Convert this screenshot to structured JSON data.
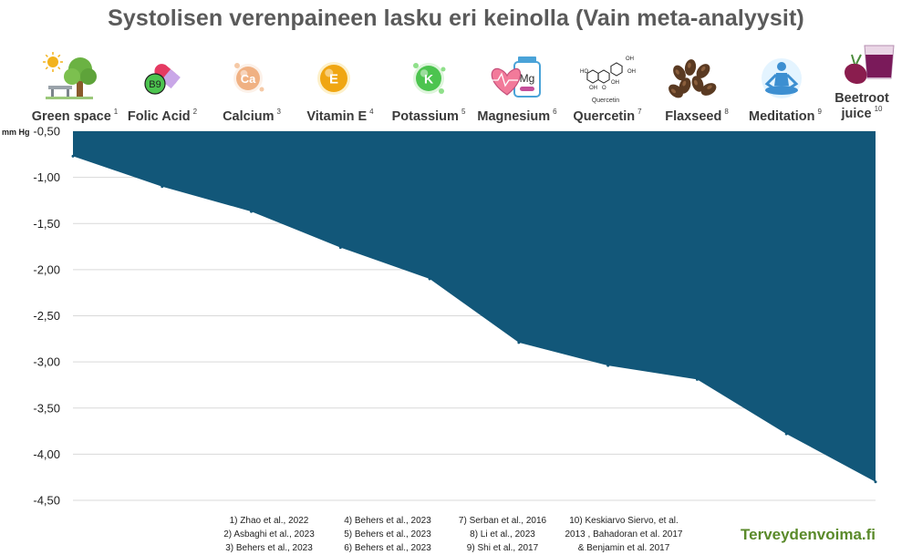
{
  "page": {
    "title": "Systolisen verenpaineen lasku eri keinolla (Vain meta-analyysit)",
    "brand": "Terveydenvoima.fi",
    "colors": {
      "area_fill": "#125779",
      "gridline": "#d9d9d9",
      "title": "#5a5a5a",
      "brand": "#5a8a2a"
    }
  },
  "chart_data": {
    "type": "area",
    "title": "Systolisen verenpaineen lasku eri keinolla (Vain meta-analyysit)",
    "ylabel": "mm Hg",
    "ylim": [
      -4.5,
      -0.5
    ],
    "y_ticks": [
      -0.5,
      -1.0,
      -1.5,
      -2.0,
      -2.5,
      -3.0,
      -3.5,
      -4.0,
      -4.5
    ],
    "y_tick_labels": [
      "-0,50",
      "-1,00",
      "-1,50",
      "-2,00",
      "-2,50",
      "-3,00",
      "-3,50",
      "-4,00",
      "-4,50"
    ],
    "grid": true,
    "baseline": -0.5,
    "categories": [
      "Green space",
      "Folic Acid",
      "Calcium",
      "Vitamin E",
      "Potassium",
      "Magnesium",
      "Quercetin",
      "Flaxseed",
      "Meditation",
      "Beetroot juice"
    ],
    "category_lines": [
      [
        "Green space"
      ],
      [
        "Folic Acid"
      ],
      [
        "Calcium"
      ],
      [
        "Vitamin E"
      ],
      [
        "Potassium"
      ],
      [
        "Magnesium"
      ],
      [
        "Quercetin"
      ],
      [
        "Flaxseed"
      ],
      [
        "Meditation"
      ],
      [
        "Beetroot",
        "juice"
      ]
    ],
    "superscripts": [
      "1",
      "2",
      "3",
      "4",
      "5",
      "6",
      "7",
      "8",
      "9",
      "10"
    ],
    "values": [
      -0.77,
      -1.1,
      -1.37,
      -1.76,
      -2.1,
      -2.79,
      -3.04,
      -3.19,
      -3.78,
      -4.3
    ],
    "icons": [
      "tree-bench-icon",
      "folic-acid-capsule-icon",
      "calcium-orb-icon",
      "vitamin-e-orb-icon",
      "potassium-orb-icon",
      "magnesium-heart-bottle-icon",
      "quercetin-molecule-icon",
      "flaxseed-icon",
      "meditation-icon",
      "beetroot-juice-icon"
    ],
    "quercetin_caption": "Quercetin"
  },
  "references": {
    "col1": [
      "1) Zhao et al., 2022",
      "2)  Asbaghi et al., 2023",
      "3) Behers et al., 2023"
    ],
    "col2": [
      "4) Behers et al., 2023",
      "5)  Behers et al., 2023",
      "6) Behers et al., 2023"
    ],
    "col3": [
      "7) Serban et al., 2016",
      "8)  Li et al., 2023",
      "9) Shi et al., 2017"
    ],
    "col4": [
      "10) Keskiarvo Siervo, et al.",
      "2013 , Bahadoran et al. 2017",
      "& Benjamin et al. 2017"
    ]
  }
}
